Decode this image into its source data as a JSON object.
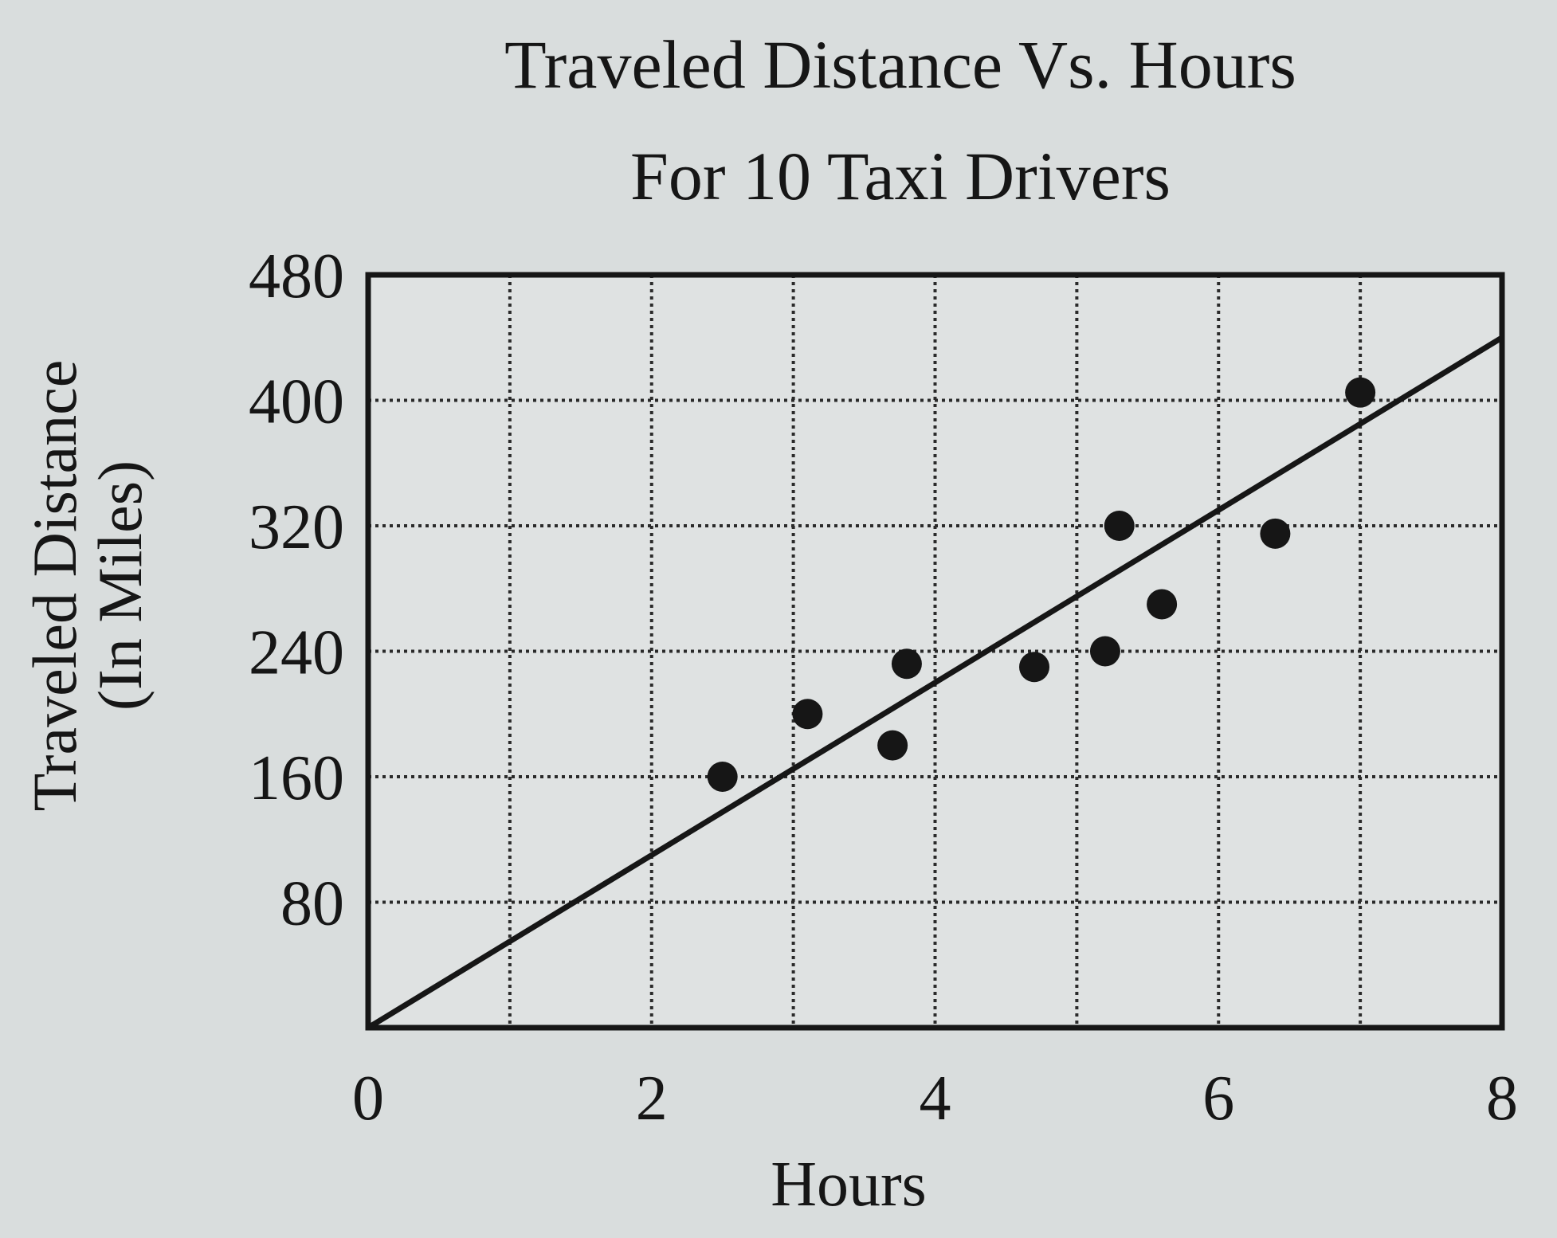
{
  "chart_data": {
    "type": "scatter",
    "title": "Traveled Distance Vs. Hours",
    "subtitle": "For 10 Taxi Drivers",
    "xlabel": "Hours",
    "ylabel_line1": "Traveled Distance",
    "ylabel_line2": "(In Miles)",
    "xlim": [
      0,
      8
    ],
    "ylim": [
      0,
      480
    ],
    "x_ticks": [
      0,
      2,
      4,
      6,
      8
    ],
    "y_ticks": [
      80,
      160,
      240,
      320,
      400,
      480
    ],
    "x_tick_labels": [
      "0",
      "2",
      "4",
      "6",
      "8"
    ],
    "y_tick_labels": [
      "80",
      "160",
      "240",
      "320",
      "400",
      "480"
    ],
    "grid": true,
    "grid_x_step": 1,
    "grid_y_step": 80,
    "points": [
      {
        "x": 2.5,
        "y": 160
      },
      {
        "x": 3.1,
        "y": 200
      },
      {
        "x": 3.7,
        "y": 180
      },
      {
        "x": 3.8,
        "y": 232
      },
      {
        "x": 4.7,
        "y": 230
      },
      {
        "x": 5.2,
        "y": 240
      },
      {
        "x": 5.3,
        "y": 320
      },
      {
        "x": 5.6,
        "y": 270
      },
      {
        "x": 6.4,
        "y": 315
      },
      {
        "x": 7.0,
        "y": 405
      }
    ],
    "trend_line": {
      "x1": 0,
      "y1": 0,
      "x2": 8,
      "y2": 440
    },
    "colors": {
      "background": "#d9dddd",
      "plot_area": "#dfe2e2",
      "ink": "#161616",
      "grid": "#2a2a2a"
    }
  }
}
